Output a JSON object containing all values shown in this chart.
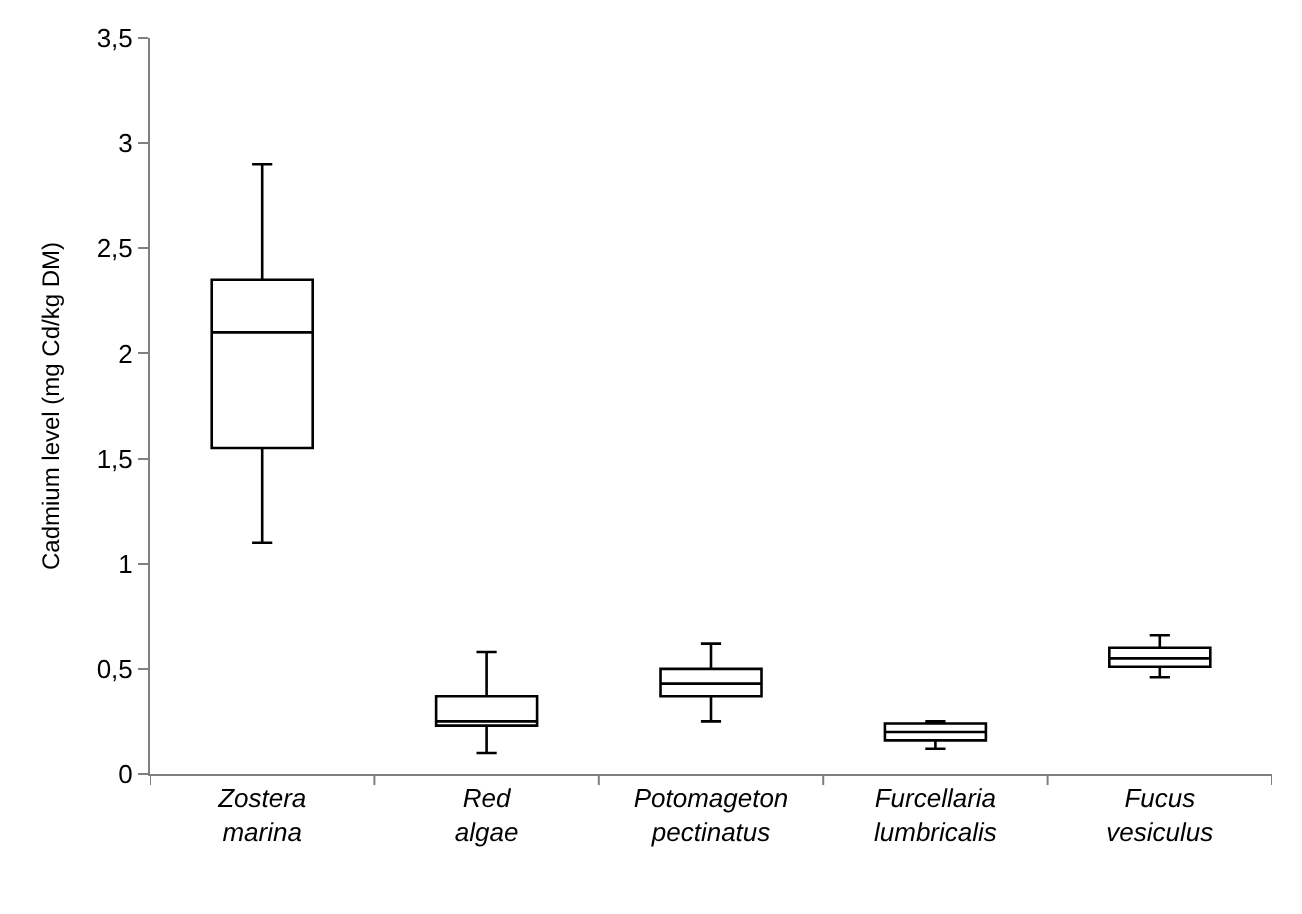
{
  "chart_data": {
    "type": "box",
    "ylabel": "Cadmium level (mg Cd/kg DM)",
    "categories": [
      "Zostera marina",
      "Red algae",
      "Potomageton pectinatus",
      "Furcellaria lumbricalis",
      "Fucus vesiculus"
    ],
    "boxes": [
      {
        "low": 1.1,
        "q1": 1.55,
        "median": 2.1,
        "q3": 2.35,
        "high": 2.9
      },
      {
        "low": 0.1,
        "q1": 0.23,
        "median": 0.25,
        "q3": 0.37,
        "high": 0.58
      },
      {
        "low": 0.25,
        "q1": 0.37,
        "median": 0.43,
        "q3": 0.5,
        "high": 0.62
      },
      {
        "low": 0.12,
        "q1": 0.16,
        "median": 0.2,
        "q3": 0.24,
        "high": 0.25
      },
      {
        "low": 0.46,
        "q1": 0.51,
        "median": 0.55,
        "q3": 0.6,
        "high": 0.66
      }
    ],
    "color": "#000000",
    "ylim": [
      0,
      3.5
    ],
    "yticks": [
      0,
      {
        "value": 0.5,
        "label": "0,5"
      },
      1,
      {
        "value": 1.5,
        "label": "1,5"
      },
      2,
      {
        "value": 2.5,
        "label": "2,5"
      },
      3,
      {
        "value": 3.5,
        "label": "3,5"
      }
    ]
  }
}
